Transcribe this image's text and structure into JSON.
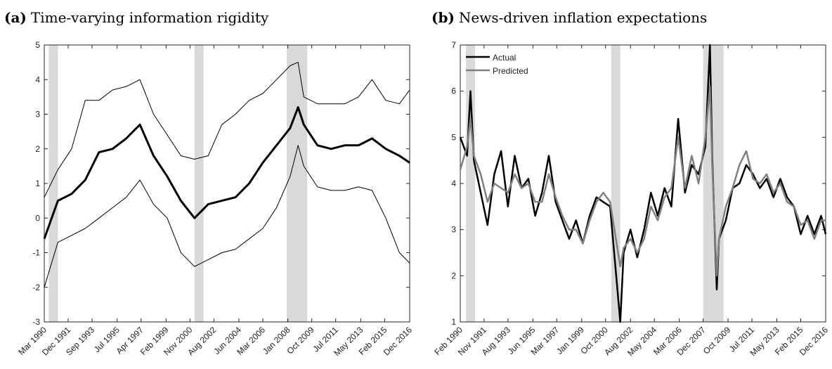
{
  "chart_data": [
    {
      "type": "line",
      "label": "(a)",
      "title": "Time-varying information rigidity",
      "xlim": [
        "Mar 1990",
        "Dec 2016"
      ],
      "xticks": [
        "Mar 1990",
        "Dec 1991",
        "Sep 1993",
        "Jul 1995",
        "Apr 1997",
        "Feb 1999",
        "Nov 2000",
        "Aug 2002",
        "Jun 2004",
        "Mar 2006",
        "Jan 2008",
        "Oct 2009",
        "Jul 2011",
        "May 2013",
        "Feb 2015",
        "Dec 2016"
      ],
      "ylim": [
        -3,
        5
      ],
      "yticks": [
        -3,
        -2,
        -1,
        0,
        1,
        2,
        3,
        4,
        5
      ],
      "shaded_periods": [
        [
          "Jul 1990",
          "Mar 1991"
        ],
        [
          "Mar 2001",
          "Nov 2001"
        ],
        [
          "Dec 2007",
          "Jun 2009"
        ]
      ],
      "shade_color": "#d9d9d9",
      "x": [
        "Mar 1990",
        "Mar 1991",
        "Mar 1992",
        "Mar 1993",
        "Mar 1994",
        "Mar 1995",
        "Mar 1996",
        "Mar 1997",
        "Mar 1998",
        "Mar 1999",
        "Mar 2000",
        "Mar 2001",
        "Mar 2002",
        "Mar 2003",
        "Mar 2004",
        "Mar 2005",
        "Mar 2006",
        "Mar 2007",
        "Mar 2008",
        "Oct 2008",
        "Mar 2009",
        "Mar 2010",
        "Mar 2011",
        "Mar 2012",
        "Mar 2013",
        "Mar 2014",
        "Mar 2015",
        "Mar 2016",
        "Dec 2016"
      ],
      "series": [
        {
          "color": "#000000",
          "width": 3,
          "values": [
            -0.6,
            0.5,
            0.7,
            1.1,
            1.9,
            2.0,
            2.3,
            2.7,
            1.8,
            1.2,
            0.5,
            0.0,
            0.4,
            0.5,
            0.6,
            1.0,
            1.6,
            2.1,
            2.6,
            3.2,
            2.7,
            2.1,
            2.0,
            2.1,
            2.1,
            2.3,
            2.0,
            1.8,
            1.6
          ]
        },
        {
          "color": "#000000",
          "width": 1,
          "values": [
            0.6,
            1.4,
            2.0,
            3.4,
            3.4,
            3.7,
            3.8,
            4.0,
            3.0,
            2.4,
            1.8,
            1.7,
            1.8,
            2.7,
            3.0,
            3.4,
            3.6,
            4.0,
            4.4,
            4.5,
            3.5,
            3.3,
            3.3,
            3.3,
            3.5,
            4.0,
            3.4,
            3.3,
            3.7
          ]
        },
        {
          "color": "#000000",
          "width": 1,
          "values": [
            -2.0,
            -0.7,
            -0.5,
            -0.3,
            0.0,
            0.3,
            0.6,
            1.1,
            0.4,
            0.0,
            -1.0,
            -1.4,
            -1.2,
            -1.0,
            -0.9,
            -0.6,
            -0.3,
            0.3,
            1.2,
            2.1,
            1.5,
            0.9,
            0.8,
            0.8,
            0.9,
            0.8,
            0.0,
            -1.0,
            -1.3
          ]
        }
      ]
    },
    {
      "type": "line",
      "label": "(b)",
      "title": "News-driven inflation expectations",
      "xlim": [
        "Feb 1990",
        "Dec 2016"
      ],
      "xticks": [
        "Feb 1990",
        "Nov 1991",
        "Aug 1993",
        "Jun 1995",
        "Mar 1997",
        "Jan 1999",
        "Oct 2000",
        "Aug 2002",
        "May 2004",
        "Mar 2006",
        "Dec 2007",
        "Oct 2009",
        "Jul 2011",
        "May 2013",
        "Feb 2015",
        "Dec 2016"
      ],
      "ylim": [
        1,
        7
      ],
      "yticks": [
        1,
        2,
        3,
        4,
        5,
        6,
        7
      ],
      "shaded_periods": [
        [
          "Jul 1990",
          "Mar 1991"
        ],
        [
          "Mar 2001",
          "Nov 2001"
        ],
        [
          "Dec 2007",
          "Jun 2009"
        ]
      ],
      "shade_color": "#d9d9d9",
      "legend": "upper left",
      "x": [
        "Feb 1990",
        "Aug 1990",
        "Nov 1990",
        "Feb 1991",
        "Aug 1991",
        "Feb 1992",
        "Aug 1992",
        "Feb 1993",
        "Aug 1993",
        "Feb 1994",
        "Aug 1994",
        "Feb 1995",
        "Aug 1995",
        "Feb 1996",
        "Aug 1996",
        "Feb 1997",
        "Aug 1997",
        "Feb 1998",
        "Aug 1998",
        "Feb 1999",
        "Aug 1999",
        "Feb 2000",
        "Aug 2000",
        "Feb 2001",
        "Nov 2001",
        "Feb 2002",
        "Aug 2002",
        "Feb 2003",
        "Aug 2003",
        "Feb 2004",
        "Aug 2004",
        "Feb 2005",
        "Aug 2005",
        "Feb 2006",
        "Aug 2006",
        "Feb 2007",
        "Aug 2007",
        "Feb 2008",
        "Jun 2008",
        "Aug 2008",
        "Dec 2008",
        "Feb 2009",
        "Aug 2009",
        "Feb 2010",
        "Aug 2010",
        "Feb 2011",
        "Aug 2011",
        "Feb 2012",
        "Aug 2012",
        "Feb 2013",
        "Aug 2013",
        "Feb 2014",
        "Aug 2014",
        "Feb 2015",
        "Aug 2015",
        "Feb 2016",
        "Aug 2016",
        "Dec 2016"
      ],
      "series": [
        {
          "name": "Actual",
          "color": "#000000",
          "width": 2.5,
          "values": [
            5.0,
            4.6,
            6.0,
            4.5,
            3.8,
            3.1,
            4.2,
            4.7,
            3.5,
            4.6,
            3.9,
            4.1,
            3.3,
            3.8,
            4.6,
            3.6,
            3.2,
            2.8,
            3.2,
            2.7,
            3.3,
            3.7,
            3.6,
            3.5,
            1.0,
            2.5,
            3.0,
            2.4,
            3.0,
            3.8,
            3.3,
            3.9,
            3.5,
            5.4,
            3.8,
            4.4,
            4.2,
            4.8,
            7.0,
            4.6,
            1.7,
            2.8,
            3.2,
            3.9,
            4.0,
            4.4,
            4.2,
            3.9,
            4.1,
            3.7,
            4.1,
            3.7,
            3.5,
            2.9,
            3.3,
            2.9,
            3.3,
            2.9
          ]
        },
        {
          "name": "Predicted",
          "color": "#808080",
          "width": 2.5,
          "values": [
            4.3,
            4.8,
            5.4,
            4.6,
            4.2,
            3.6,
            4.0,
            3.9,
            3.8,
            4.2,
            3.9,
            4.0,
            3.6,
            3.6,
            4.2,
            3.7,
            3.3,
            3.0,
            3.0,
            2.7,
            3.2,
            3.6,
            3.8,
            3.6,
            2.2,
            2.6,
            2.8,
            2.5,
            2.8,
            3.5,
            3.2,
            3.7,
            3.9,
            5.0,
            3.9,
            4.6,
            4.0,
            5.0,
            6.1,
            4.4,
            2.0,
            2.8,
            3.5,
            3.9,
            4.4,
            4.7,
            4.1,
            4.0,
            4.2,
            3.8,
            4.0,
            3.6,
            3.5,
            3.1,
            3.2,
            2.8,
            3.2,
            3.2
          ]
        }
      ]
    }
  ]
}
